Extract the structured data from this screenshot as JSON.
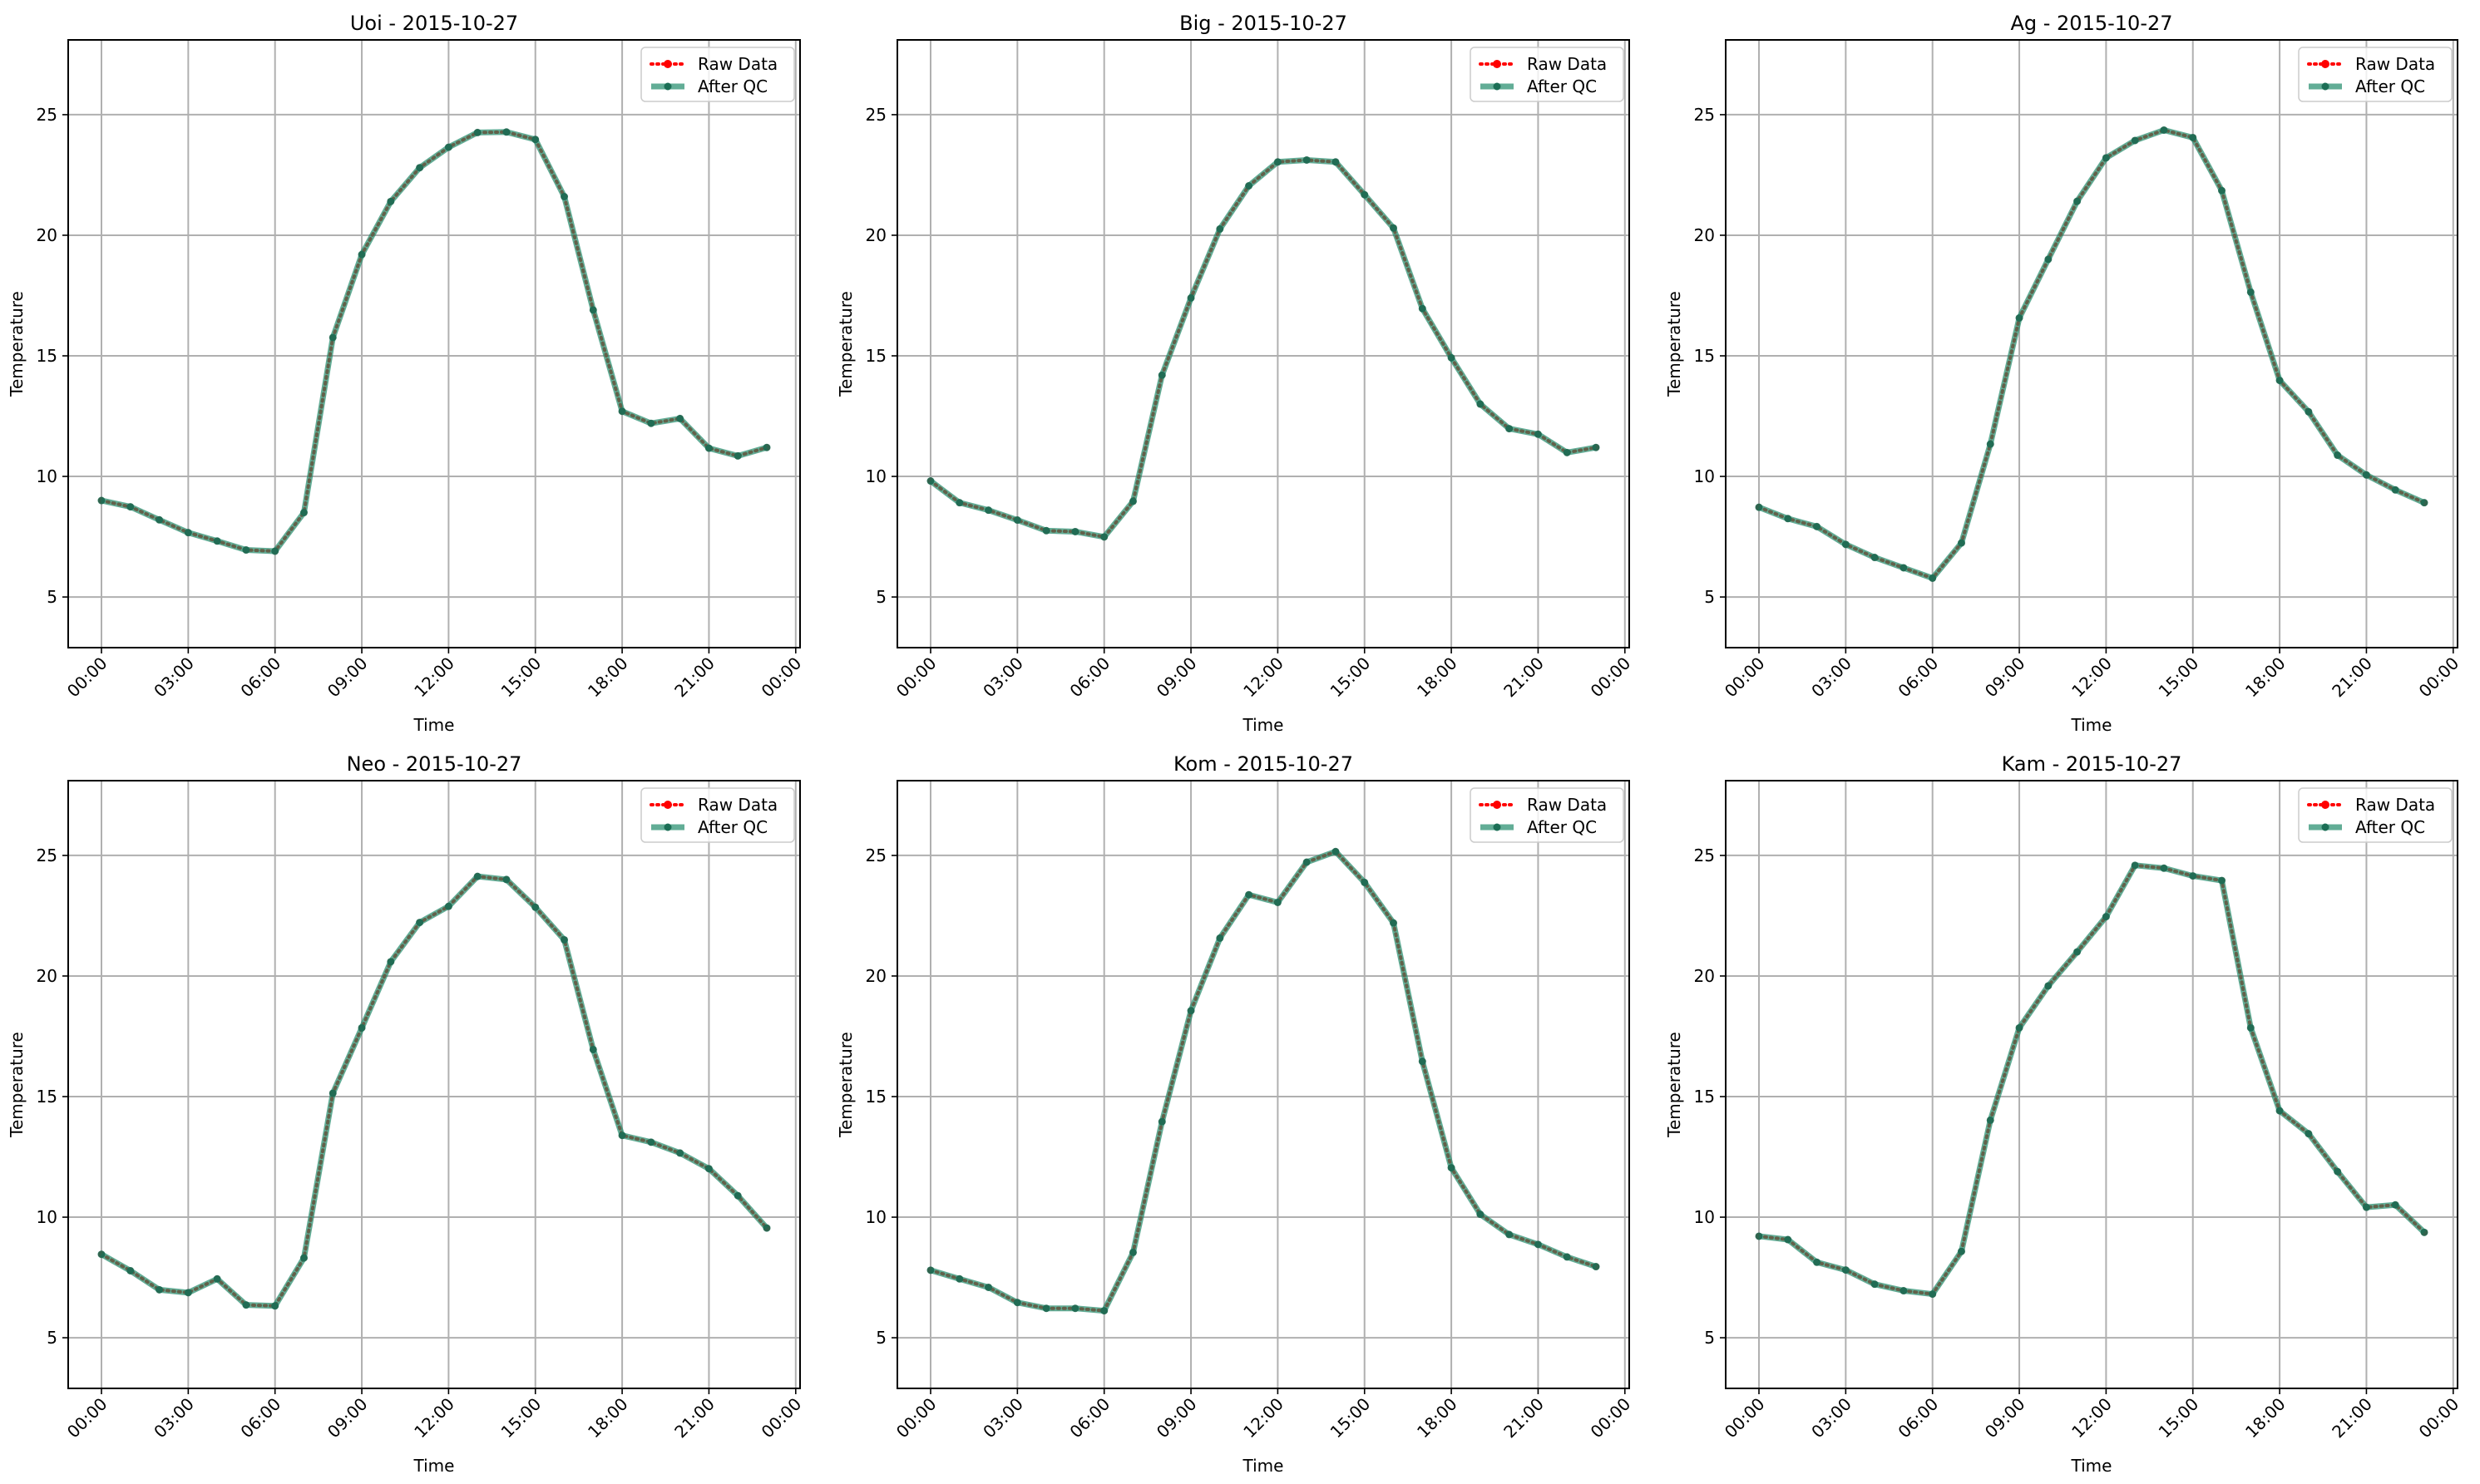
{
  "chart_data": [
    {
      "type": "line",
      "title": "Uoi - 2015-10-27",
      "xlabel": "Time",
      "ylabel": "Temperature",
      "x": [
        0,
        1,
        2,
        3,
        4,
        5,
        6,
        7,
        8,
        9,
        10,
        11,
        12,
        13,
        14,
        15,
        16,
        17,
        18,
        19,
        20,
        21,
        22,
        23
      ],
      "series": [
        {
          "name": "Raw Data",
          "values": [
            9.0,
            8.74,
            8.2,
            7.67,
            7.32,
            6.95,
            6.9,
            8.5,
            15.76,
            19.2,
            21.4,
            22.8,
            23.65,
            24.26,
            24.28,
            23.97,
            21.6,
            16.9,
            12.7,
            12.2,
            12.4,
            11.17,
            10.85,
            11.2
          ]
        },
        {
          "name": "After QC",
          "values": [
            9.0,
            8.74,
            8.2,
            7.67,
            7.32,
            6.95,
            6.9,
            8.5,
            15.76,
            19.2,
            21.4,
            22.8,
            23.65,
            24.26,
            24.28,
            23.97,
            21.6,
            16.9,
            12.7,
            12.2,
            12.4,
            11.17,
            10.85,
            11.2
          ]
        }
      ]
    },
    {
      "type": "line",
      "title": "Big - 2015-10-27",
      "xlabel": "Time",
      "ylabel": "Temperature",
      "x": [
        0,
        1,
        2,
        3,
        4,
        5,
        6,
        7,
        8,
        9,
        10,
        11,
        12,
        13,
        14,
        15,
        16,
        17,
        18,
        19,
        20,
        21,
        22,
        23
      ],
      "series": [
        {
          "name": "Raw Data",
          "values": [
            9.81,
            8.91,
            8.6,
            8.19,
            7.75,
            7.71,
            7.49,
            8.97,
            14.2,
            17.4,
            20.26,
            22.05,
            23.04,
            23.12,
            23.04,
            21.68,
            20.3,
            16.96,
            14.92,
            13.0,
            11.98,
            11.75,
            10.99,
            11.2
          ]
        },
        {
          "name": "After QC",
          "values": [
            9.81,
            8.91,
            8.6,
            8.19,
            7.75,
            7.71,
            7.49,
            8.97,
            14.2,
            17.4,
            20.26,
            22.05,
            23.04,
            23.12,
            23.04,
            21.68,
            20.3,
            16.96,
            14.92,
            13.0,
            11.98,
            11.75,
            10.99,
            11.2
          ]
        }
      ]
    },
    {
      "type": "line",
      "title": "Ag - 2015-10-27",
      "xlabel": "Time",
      "ylabel": "Temperature",
      "x": [
        0,
        1,
        2,
        3,
        4,
        5,
        6,
        7,
        8,
        9,
        10,
        11,
        12,
        13,
        14,
        15,
        16,
        17,
        18,
        19,
        20,
        21,
        22,
        23
      ],
      "series": [
        {
          "name": "Raw Data",
          "values": [
            8.72,
            8.25,
            7.92,
            7.18,
            6.64,
            6.21,
            5.78,
            7.24,
            11.34,
            16.57,
            19.0,
            21.41,
            23.21,
            23.93,
            24.36,
            24.05,
            21.85,
            17.64,
            13.98,
            12.68,
            10.88,
            10.06,
            9.44,
            8.91
          ]
        },
        {
          "name": "After QC",
          "values": [
            8.72,
            8.25,
            7.92,
            7.18,
            6.64,
            6.21,
            5.78,
            7.24,
            11.34,
            16.57,
            19.0,
            21.41,
            23.21,
            23.93,
            24.36,
            24.05,
            21.85,
            17.64,
            13.98,
            12.68,
            10.88,
            10.06,
            9.44,
            8.91
          ]
        }
      ]
    },
    {
      "type": "line",
      "title": "Neo - 2015-10-27",
      "xlabel": "Time",
      "ylabel": "Temperature",
      "x": [
        0,
        1,
        2,
        3,
        4,
        5,
        6,
        7,
        8,
        9,
        10,
        11,
        12,
        13,
        14,
        15,
        16,
        17,
        18,
        19,
        20,
        21,
        22,
        23
      ],
      "series": [
        {
          "name": "Raw Data",
          "values": [
            8.46,
            7.78,
            6.99,
            6.87,
            7.44,
            6.36,
            6.32,
            8.31,
            15.14,
            17.85,
            20.59,
            22.22,
            22.89,
            24.13,
            24.0,
            22.85,
            21.5,
            16.95,
            13.39,
            13.11,
            12.66,
            12.01,
            10.89,
            9.55
          ]
        },
        {
          "name": "After QC",
          "values": [
            8.46,
            7.78,
            6.99,
            6.87,
            7.44,
            6.36,
            6.32,
            8.31,
            15.14,
            17.85,
            20.59,
            22.22,
            22.89,
            24.13,
            24.0,
            22.85,
            21.5,
            16.95,
            13.39,
            13.11,
            12.66,
            12.01,
            10.89,
            9.55
          ]
        }
      ]
    },
    {
      "type": "line",
      "title": "Kom - 2015-10-27",
      "xlabel": "Time",
      "ylabel": "Temperature",
      "x": [
        0,
        1,
        2,
        3,
        4,
        5,
        6,
        7,
        8,
        9,
        10,
        11,
        12,
        13,
        14,
        15,
        16,
        17,
        18,
        19,
        20,
        21,
        22,
        23
      ],
      "series": [
        {
          "name": "Raw Data",
          "values": [
            7.8,
            7.44,
            7.09,
            6.46,
            6.22,
            6.22,
            6.12,
            8.54,
            13.96,
            18.56,
            21.57,
            23.37,
            23.05,
            24.72,
            25.16,
            23.88,
            22.2,
            16.46,
            12.05,
            10.12,
            9.28,
            8.87,
            8.35,
            7.95
          ]
        },
        {
          "name": "After QC",
          "values": [
            7.8,
            7.44,
            7.09,
            6.46,
            6.22,
            6.22,
            6.12,
            8.54,
            13.96,
            18.56,
            21.57,
            23.37,
            23.05,
            24.72,
            25.16,
            23.88,
            22.2,
            16.46,
            12.05,
            10.12,
            9.28,
            8.87,
            8.35,
            7.95
          ]
        }
      ]
    },
    {
      "type": "line",
      "title": "Kam - 2015-10-27",
      "xlabel": "Time",
      "ylabel": "Temperature",
      "x": [
        0,
        1,
        2,
        3,
        4,
        5,
        6,
        7,
        8,
        9,
        10,
        11,
        12,
        13,
        14,
        15,
        16,
        17,
        18,
        19,
        20,
        21,
        22,
        23
      ],
      "series": [
        {
          "name": "Raw Data",
          "values": [
            9.21,
            9.07,
            8.13,
            7.81,
            7.22,
            6.95,
            6.81,
            8.58,
            14.02,
            17.85,
            19.59,
            21.0,
            22.46,
            24.59,
            24.47,
            24.15,
            23.96,
            17.85,
            14.41,
            13.46,
            11.89,
            10.41,
            10.51,
            9.37
          ]
        },
        {
          "name": "After QC",
          "values": [
            9.21,
            9.07,
            8.13,
            7.81,
            7.22,
            6.95,
            6.81,
            8.58,
            14.02,
            17.85,
            19.59,
            21.0,
            22.46,
            24.59,
            24.47,
            24.15,
            23.96,
            17.85,
            14.41,
            13.46,
            11.89,
            10.41,
            10.51,
            9.37
          ]
        }
      ]
    }
  ],
  "axes": {
    "xlim": [
      -1.15,
      24.15
    ],
    "ylim": [
      2.9,
      28.1
    ],
    "yticks": [
      5,
      10,
      15,
      20,
      25
    ],
    "ytick_labels": [
      "5",
      "10",
      "15",
      "20",
      "25"
    ],
    "xticks": [
      0,
      3,
      6,
      9,
      12,
      15,
      18,
      21,
      24
    ],
    "xtick_labels": [
      "00:00",
      "03:00",
      "06:00",
      "09:00",
      "12:00",
      "15:00",
      "18:00",
      "21:00",
      "00:00"
    ],
    "grid": true,
    "legend_position": "top-right"
  },
  "legend": {
    "raw": "Raw Data",
    "qc": "After QC"
  },
  "colors": {
    "raw": "#ff0000",
    "qc": "#1f8a6a",
    "grid": "#b0b0b0"
  }
}
